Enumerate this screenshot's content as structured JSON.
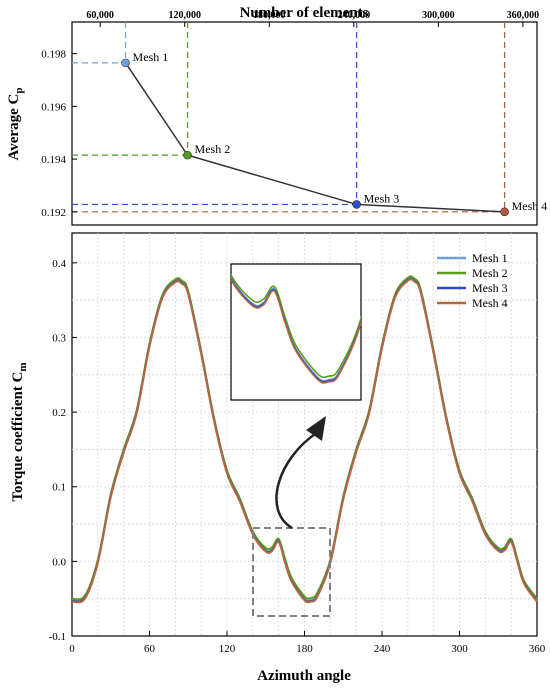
{
  "chart_data": [
    {
      "type": "line",
      "title": "",
      "xlabel": "Number of elements",
      "ylabel": "Average C_p",
      "ylabel_main": "Average C",
      "ylabel_sub": "p",
      "x_axis_position": "top",
      "xlim": [
        40000,
        370000
      ],
      "ylim": [
        0.1915,
        0.1992
      ],
      "x_ticks": [
        "60,000",
        "120,000",
        "180,000",
        "240,000",
        "300,000",
        "360,000"
      ],
      "x_tick_values": [
        60000,
        120000,
        180000,
        240000,
        300000,
        360000
      ],
      "y_ticks": [
        "0.192",
        "0.194",
        "0.196",
        "0.198"
      ],
      "y_tick_values": [
        0.192,
        0.194,
        0.196,
        0.198
      ],
      "grid": false,
      "points": [
        {
          "name": "Mesh 1",
          "x": 78000,
          "y": 0.19765,
          "color": "#6fa0d8"
        },
        {
          "name": "Mesh 2",
          "x": 122000,
          "y": 0.19415,
          "color": "#4f9a1f"
        },
        {
          "name": "Mesh 3",
          "x": 242000,
          "y": 0.19228,
          "color": "#2d4fcf"
        },
        {
          "name": "Mesh 4",
          "x": 347000,
          "y": 0.192,
          "color": "#b05a3c"
        }
      ]
    },
    {
      "type": "line",
      "title": "",
      "xlabel": "Azimuth angle",
      "ylabel": "Torque coefficient C_m",
      "ylabel_main": "Torque coefficient C",
      "ylabel_sub": "m",
      "xlim": [
        0,
        360
      ],
      "ylim": [
        -0.1,
        0.44
      ],
      "x_ticks": [
        "0",
        "60",
        "120",
        "180",
        "240",
        "300",
        "360"
      ],
      "x_tick_values": [
        0,
        60,
        120,
        180,
        240,
        300,
        360
      ],
      "y_ticks": [
        "-0.1",
        "0.0",
        "0.1",
        "0.2",
        "0.3",
        "0.4"
      ],
      "y_tick_values": [
        -0.1,
        0.0,
        0.1,
        0.2,
        0.3,
        0.4
      ],
      "grid": true,
      "legend_position": "top-right",
      "x": [
        0,
        10,
        20,
        30,
        40,
        50,
        60,
        70,
        80,
        85,
        90,
        100,
        110,
        120,
        130,
        140,
        150,
        155,
        160,
        165,
        170,
        180,
        185,
        190,
        200,
        210,
        220,
        230,
        240,
        250,
        260,
        265,
        270,
        280,
        290,
        300,
        310,
        320,
        330,
        335,
        340,
        345,
        350,
        360
      ],
      "series": [
        {
          "name": "Mesh 1",
          "color": "#6fa0d8",
          "values": [
            -0.052,
            -0.048,
            0.0,
            0.088,
            0.148,
            0.2,
            0.29,
            0.355,
            0.376,
            0.374,
            0.36,
            0.28,
            0.19,
            0.12,
            0.082,
            0.038,
            0.015,
            0.016,
            0.028,
            0.0,
            -0.025,
            -0.05,
            -0.052,
            -0.045,
            0.0,
            0.085,
            0.148,
            0.2,
            0.288,
            0.355,
            0.378,
            0.377,
            0.362,
            0.28,
            0.19,
            0.12,
            0.082,
            0.038,
            0.016,
            0.017,
            0.028,
            0.0,
            -0.028,
            -0.052
          ]
        },
        {
          "name": "Mesh 2",
          "color": "#5a9e1c",
          "values": [
            -0.05,
            -0.046,
            0.002,
            0.09,
            0.15,
            0.202,
            0.292,
            0.357,
            0.378,
            0.376,
            0.362,
            0.282,
            0.192,
            0.122,
            0.084,
            0.04,
            0.018,
            0.019,
            0.03,
            0.003,
            -0.022,
            -0.047,
            -0.049,
            -0.042,
            0.002,
            0.087,
            0.15,
            0.202,
            0.29,
            0.357,
            0.38,
            0.379,
            0.364,
            0.282,
            0.192,
            0.122,
            0.084,
            0.04,
            0.018,
            0.019,
            0.03,
            0.002,
            -0.026,
            -0.05
          ]
        },
        {
          "name": "Mesh 3",
          "color": "#3448c6",
          "values": [
            -0.053,
            -0.049,
            -0.001,
            0.087,
            0.147,
            0.199,
            0.289,
            0.354,
            0.375,
            0.373,
            0.359,
            0.279,
            0.189,
            0.119,
            0.081,
            0.037,
            0.014,
            0.015,
            0.027,
            -0.001,
            -0.026,
            -0.051,
            -0.053,
            -0.046,
            -0.001,
            0.084,
            0.147,
            0.199,
            0.287,
            0.354,
            0.377,
            0.376,
            0.361,
            0.279,
            0.189,
            0.119,
            0.081,
            0.037,
            0.015,
            0.016,
            0.027,
            -0.001,
            -0.029,
            -0.053
          ]
        },
        {
          "name": "Mesh 4",
          "color": "#b5683f",
          "values": [
            -0.054,
            -0.05,
            -0.002,
            0.086,
            0.146,
            0.198,
            0.288,
            0.353,
            0.374,
            0.372,
            0.358,
            0.278,
            0.188,
            0.118,
            0.08,
            0.036,
            0.013,
            0.014,
            0.026,
            -0.002,
            -0.027,
            -0.052,
            -0.054,
            -0.047,
            -0.002,
            0.083,
            0.146,
            0.198,
            0.286,
            0.353,
            0.376,
            0.375,
            0.36,
            0.278,
            0.188,
            0.118,
            0.08,
            0.036,
            0.014,
            0.015,
            0.026,
            -0.002,
            -0.03,
            -0.054
          ]
        }
      ],
      "inset": {
        "x_range": [
          140,
          200
        ],
        "y_range": [
          -0.07,
          0.05
        ],
        "annotation": "zoomed inset with arrow"
      }
    }
  ]
}
